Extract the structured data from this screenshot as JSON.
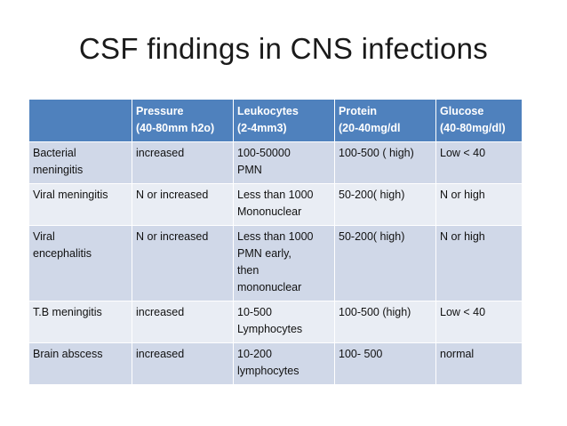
{
  "slide": {
    "title": "CSF findings in CNS infections"
  },
  "table": {
    "header": [
      {
        "line1": "",
        "line2": ""
      },
      {
        "line1": "Pressure",
        "line2": "(40-80mm h2o)"
      },
      {
        "line1": "Leukocytes",
        "line2": "(2-4mm3)"
      },
      {
        "line1": "Protein",
        "line2": "(20-40mg/dl"
      },
      {
        "line1": "Glucose",
        "line2": "(40-80mg/dl)"
      }
    ],
    "rows": [
      {
        "condition": [
          "Bacterial",
          "meningitis"
        ],
        "pressure": [
          "increased"
        ],
        "leukocytes": [
          "100-50000",
          "PMN"
        ],
        "protein": [
          "100-500 ( high)"
        ],
        "glucose": [
          "Low < 40"
        ]
      },
      {
        "condition": [
          "Viral meningitis"
        ],
        "pressure": [
          "N or increased"
        ],
        "leukocytes": [
          "Less than 1000",
          "Mononuclear"
        ],
        "protein": [
          "50-200( high)"
        ],
        "glucose": [
          "N or high"
        ]
      },
      {
        "condition": [
          "Viral",
          "encephalitis"
        ],
        "pressure": [
          "N or increased"
        ],
        "leukocytes": [
          "Less than 1000",
          "PMN early,",
          "then",
          "mononuclear"
        ],
        "protein": [
          "50-200( high)"
        ],
        "glucose": [
          "N or high"
        ]
      },
      {
        "condition": [
          "T.B meningitis"
        ],
        "pressure": [
          "increased"
        ],
        "leukocytes": [
          "10-500",
          "Lymphocytes"
        ],
        "protein": [
          "100-500 (high)"
        ],
        "glucose": [
          "Low < 40"
        ]
      },
      {
        "condition": [
          "Brain abscess"
        ],
        "pressure": [
          "increased"
        ],
        "leukocytes": [
          "10-200",
          "lymphocytes"
        ],
        "protein": [
          "100- 500"
        ],
        "glucose": [
          "normal"
        ]
      }
    ]
  },
  "colors": {
    "header_bg": "#4f81bd",
    "band_dark": "#d0d8e8",
    "band_light": "#e9edf4"
  }
}
